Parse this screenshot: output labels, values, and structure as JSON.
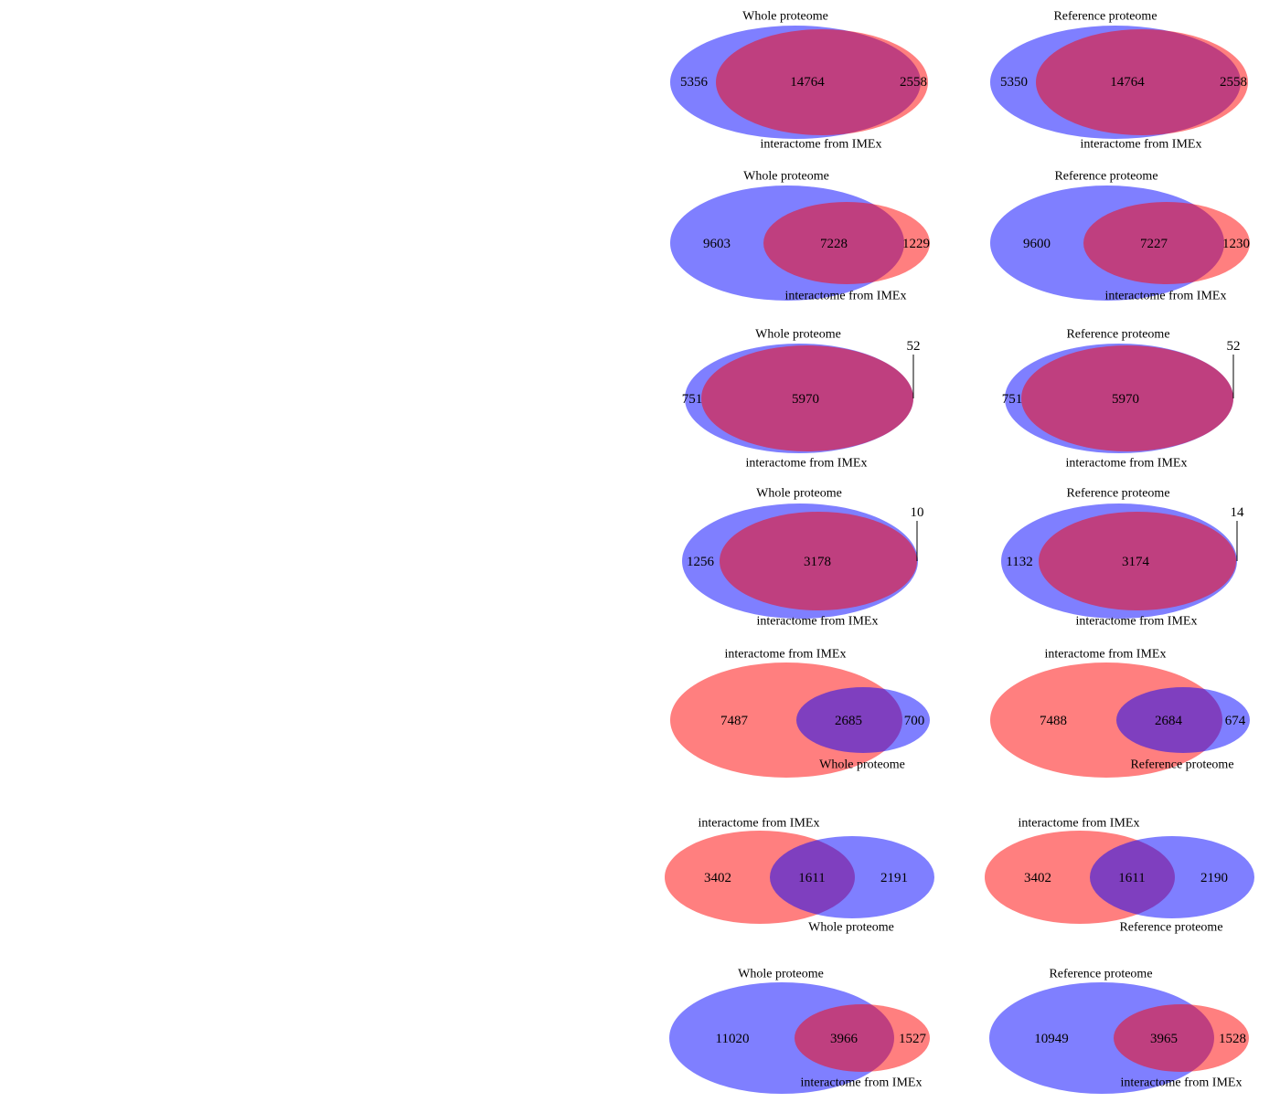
{
  "chart_data": {
    "type": "venn",
    "colors": {
      "blue": "#0000ff",
      "red": "#ff0000"
    },
    "diagrams": [
      {
        "set_a": "Whole proteome",
        "set_b": "interactome from IMEx",
        "only_a": "5356",
        "both": "14764",
        "only_b": "2558"
      },
      {
        "set_a": "Reference proteome",
        "set_b": "interactome from IMEx",
        "only_a": "5350",
        "both": "14764",
        "only_b": "2558"
      },
      {
        "set_a": "Whole proteome",
        "set_b": "interactome from IMEx",
        "only_a": "9603",
        "both": "7228",
        "only_b": "1229"
      },
      {
        "set_a": "Reference proteome",
        "set_b": "interactome from IMEx",
        "only_a": "9600",
        "both": "7227",
        "only_b": "1230"
      },
      {
        "set_a": "Whole proteome",
        "set_b": "interactome from IMEx",
        "only_a": "751",
        "both": "5970",
        "only_b": "52"
      },
      {
        "set_a": "Reference proteome",
        "set_b": "interactome from IMEx",
        "only_a": "751",
        "both": "5970",
        "only_b": "52"
      },
      {
        "set_a": "Whole proteome",
        "set_b": "interactome from IMEx",
        "only_a": "1256",
        "both": "3178",
        "only_b": "10"
      },
      {
        "set_a": "Reference proteome",
        "set_b": "interactome from IMEx",
        "only_a": "1132",
        "both": "3174",
        "only_b": "14"
      },
      {
        "set_a": "interactome from IMEx",
        "set_b": "Whole proteome",
        "only_a": "7487",
        "both": "2685",
        "only_b": "700"
      },
      {
        "set_a": "interactome from IMEx",
        "set_b": "Reference proteome",
        "only_a": "7488",
        "both": "2684",
        "only_b": "674"
      },
      {
        "set_a": "interactome from IMEx",
        "set_b": "Whole proteome",
        "only_a": "3402",
        "both": "1611",
        "only_b": "2191"
      },
      {
        "set_a": "interactome from IMEx",
        "set_b": "Reference proteome",
        "only_a": "3402",
        "both": "1611",
        "only_b": "2190"
      },
      {
        "set_a": "Whole proteome",
        "set_b": "interactome from IMEx",
        "only_a": "11020",
        "both": "3966",
        "only_b": "1527"
      },
      {
        "set_a": "Reference proteome",
        "set_b": "interactome from IMEx",
        "only_a": "10949",
        "both": "3965",
        "only_b": "1528"
      }
    ]
  }
}
